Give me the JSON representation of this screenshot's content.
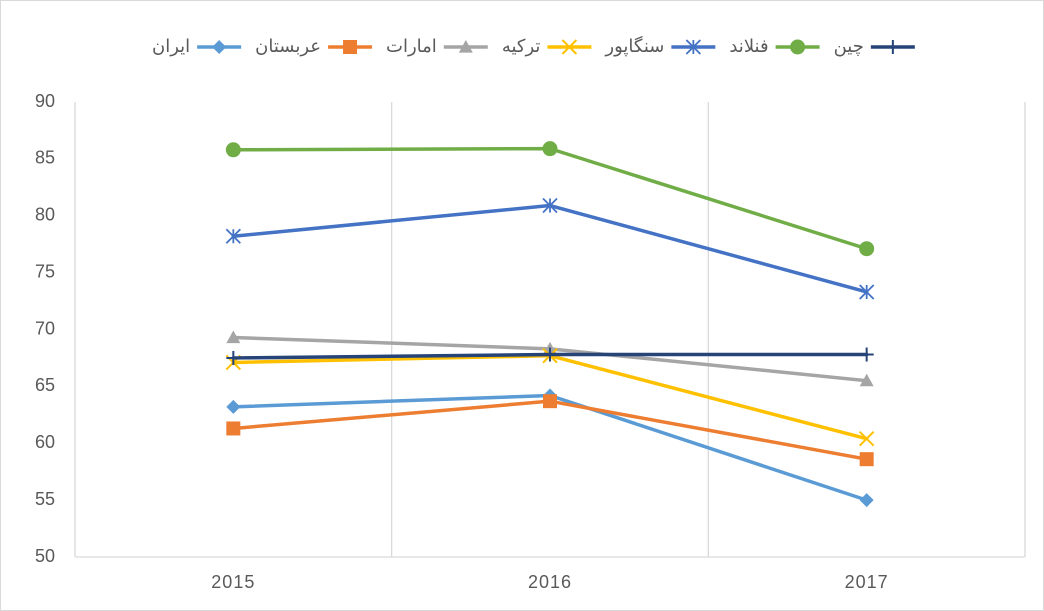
{
  "chart_data": {
    "type": "line",
    "categories": [
      "2015",
      "2016",
      "2017"
    ],
    "series": [
      {
        "name": "ایران",
        "color": "#5b9bd5",
        "marker": "diamond",
        "values": [
          63.2,
          64.2,
          55.0
        ]
      },
      {
        "name": "عربستان",
        "color": "#ed7d31",
        "marker": "square",
        "values": [
          61.3,
          63.7,
          58.6
        ]
      },
      {
        "name": "امارات",
        "color": "#a5a5a5",
        "marker": "triangle",
        "values": [
          69.3,
          68.3,
          65.5
        ]
      },
      {
        "name": "ترکیه",
        "color": "#ffc000",
        "marker": "x",
        "values": [
          67.1,
          67.7,
          60.4
        ]
      },
      {
        "name": "سنگاپور",
        "color": "#4472c4",
        "marker": "star",
        "values": [
          78.2,
          80.9,
          73.3
        ]
      },
      {
        "name": "فنلاند",
        "color": "#70ad47",
        "marker": "circle",
        "values": [
          85.8,
          85.9,
          77.1
        ]
      },
      {
        "name": "چین",
        "color": "#264478",
        "marker": "plus",
        "values": [
          67.5,
          67.8,
          67.8
        ]
      }
    ],
    "ylim": [
      50,
      90
    ],
    "yticks": [
      50,
      55,
      60,
      65,
      70,
      75,
      80,
      85,
      90
    ],
    "grid": "x",
    "legend": "top"
  }
}
